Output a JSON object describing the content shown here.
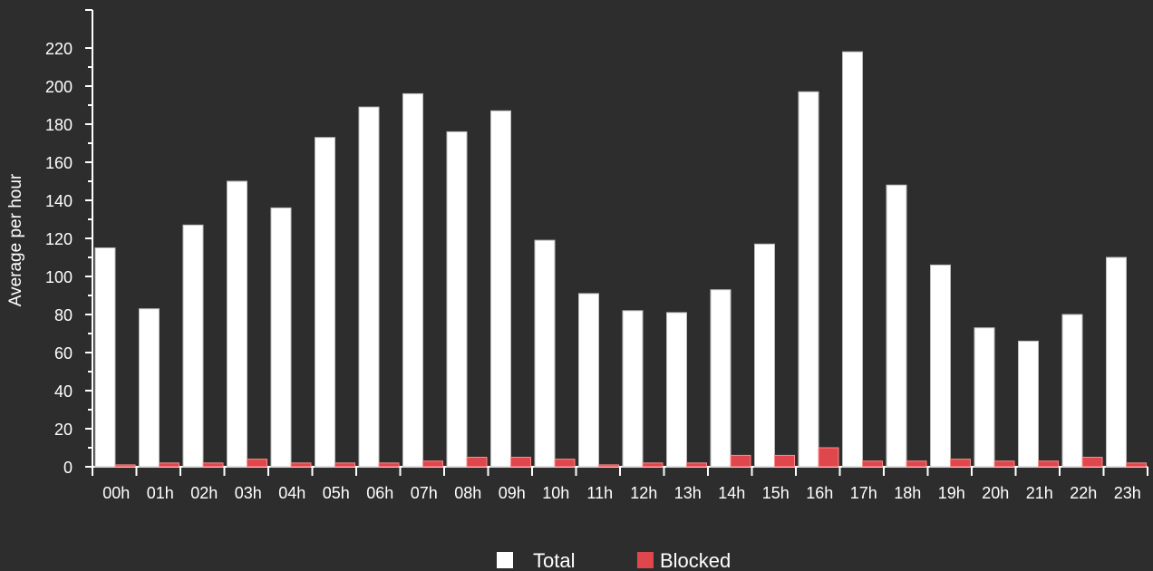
{
  "chart_data": {
    "type": "bar",
    "ylabel": "Average per hour",
    "xlabel": "",
    "ylim": [
      0,
      240
    ],
    "yticks": [
      0,
      20,
      40,
      60,
      80,
      100,
      120,
      140,
      160,
      180,
      200,
      220
    ],
    "categories": [
      "00h",
      "01h",
      "02h",
      "03h",
      "04h",
      "05h",
      "06h",
      "07h",
      "08h",
      "09h",
      "10h",
      "11h",
      "12h",
      "13h",
      "14h",
      "15h",
      "16h",
      "17h",
      "18h",
      "19h",
      "20h",
      "21h",
      "22h",
      "23h"
    ],
    "series": [
      {
        "name": "Total",
        "color": "#ffffff",
        "values": [
          115,
          83,
          127,
          150,
          136,
          173,
          189,
          196,
          176,
          187,
          119,
          91,
          82,
          81,
          93,
          117,
          197,
          218,
          148,
          106,
          73,
          66,
          80,
          110
        ]
      },
      {
        "name": "Blocked",
        "color": "#e0474c",
        "values": [
          1,
          2,
          2,
          4,
          2,
          2,
          2,
          3,
          5,
          5,
          4,
          1,
          2,
          2,
          6,
          6,
          10,
          3,
          3,
          4,
          3,
          3,
          5,
          2
        ]
      }
    ],
    "grid": false,
    "legend": "bottom-center"
  }
}
